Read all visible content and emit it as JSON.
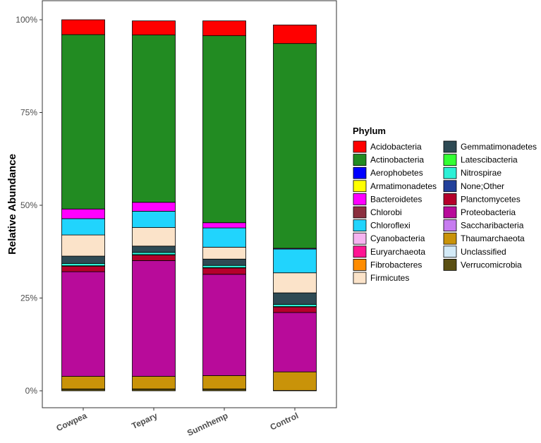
{
  "chart_data": {
    "type": "bar",
    "stacked": true,
    "normalized": true,
    "ylabel": "Relative Abundance",
    "xlabel": "",
    "ylim": [
      0,
      1
    ],
    "yticks": [
      "0%",
      "25%",
      "50%",
      "75%",
      "100%"
    ],
    "ytick_values": [
      0,
      0.25,
      0.5,
      0.75,
      1.0
    ],
    "grid": false,
    "legend_title": "Phylum",
    "legend_position": "right",
    "categories": [
      "Cowpea",
      "Tepary",
      "Sunnhemp",
      "Control"
    ],
    "series": [
      {
        "name": "Acidobacteria",
        "color": "#FF0000",
        "values": [
          0.04,
          0.038,
          0.04,
          0.05
        ]
      },
      {
        "name": "Actinobacteria",
        "color": "#228B22",
        "values": [
          0.47,
          0.451,
          0.504,
          0.552
        ]
      },
      {
        "name": "Aerophobetes",
        "color": "#0000FF",
        "values": [
          0.0,
          0.0,
          0.0,
          0.0
        ]
      },
      {
        "name": "Armatimonadetes",
        "color": "#FFFF00",
        "values": [
          0.0,
          0.0,
          0.0,
          0.0
        ]
      },
      {
        "name": "Bacteroidetes",
        "color": "#FF00FF",
        "values": [
          0.026,
          0.024,
          0.014,
          0.002
        ]
      },
      {
        "name": "Chlorobi",
        "color": "#8B2F3F",
        "values": [
          0.0,
          0.0,
          0.0,
          0.0
        ]
      },
      {
        "name": "Chloroflexi",
        "color": "#21D4FD",
        "values": [
          0.044,
          0.044,
          0.052,
          0.064
        ]
      },
      {
        "name": "Cyanobacteria",
        "color": "#F6B3F0",
        "values": [
          0.0,
          0.0,
          0.0,
          0.0
        ]
      },
      {
        "name": "Euryarchaeota",
        "color": "#FF1493",
        "values": [
          0.0,
          0.0,
          0.0,
          0.0
        ]
      },
      {
        "name": "Fibrobacteres",
        "color": "#FF8C00",
        "values": [
          0.0,
          0.0,
          0.0,
          0.0
        ]
      },
      {
        "name": "Firmicutes",
        "color": "#FBE3C9",
        "values": [
          0.057,
          0.05,
          0.032,
          0.054
        ]
      },
      {
        "name": "Gemmatimonadetes",
        "color": "#2E4A54",
        "values": [
          0.02,
          0.017,
          0.017,
          0.031
        ]
      },
      {
        "name": "Latescibacteria",
        "color": "#33FF33",
        "values": [
          0.0,
          0.0,
          0.0,
          0.0
        ]
      },
      {
        "name": "Nitrospirae",
        "color": "#2CF0D6",
        "values": [
          0.006,
          0.006,
          0.006,
          0.006
        ]
      },
      {
        "name": "None;Other",
        "color": "#22409A",
        "values": [
          0.001,
          0.001,
          0.001,
          0.001
        ]
      },
      {
        "name": "Planctomycetes",
        "color": "#B5002B",
        "values": [
          0.015,
          0.015,
          0.017,
          0.015
        ]
      },
      {
        "name": "Proteobacteria",
        "color": "#B80B9A",
        "values": [
          0.282,
          0.312,
          0.273,
          0.16
        ]
      },
      {
        "name": "Saccharibacteria",
        "color": "#C77CF0",
        "values": [
          0.0,
          0.0,
          0.0,
          0.0
        ]
      },
      {
        "name": "Thaumarchaeota",
        "color": "#C99309",
        "values": [
          0.034,
          0.034,
          0.036,
          0.05
        ]
      },
      {
        "name": "Unclassified",
        "color": "#D3EAF7",
        "values": [
          0.0,
          0.0,
          0.0,
          0.0
        ]
      },
      {
        "name": "Verrucomicrobia",
        "color": "#5A4F12",
        "values": [
          0.005,
          0.005,
          0.005,
          0.001
        ]
      }
    ]
  }
}
